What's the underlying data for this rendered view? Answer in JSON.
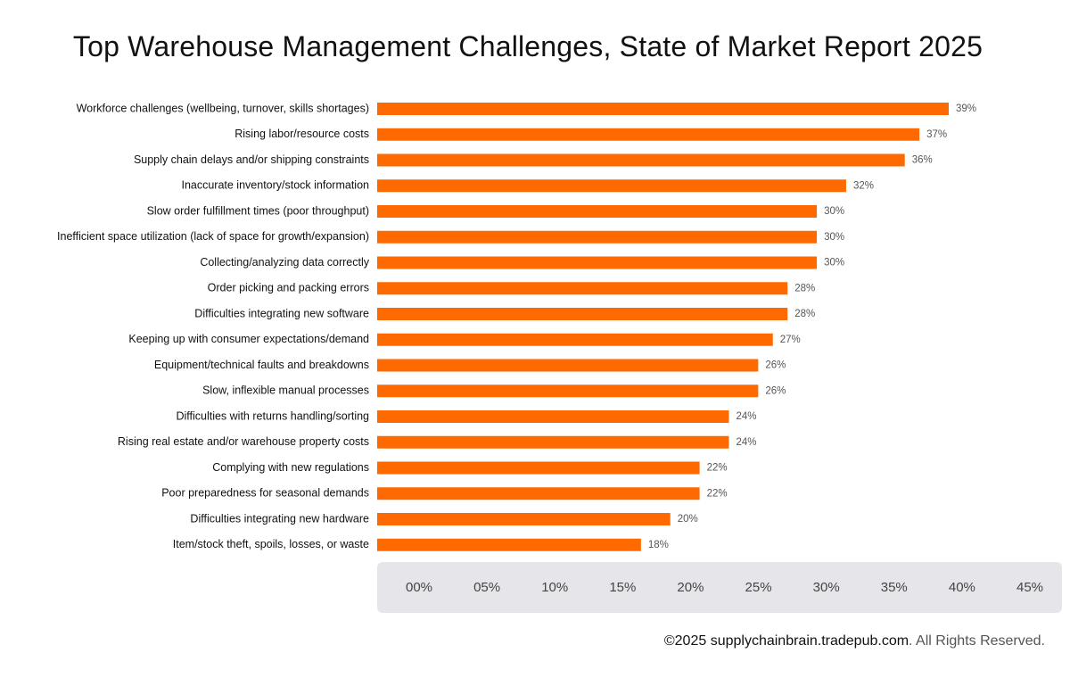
{
  "colors": {
    "bar": "#ff6a00",
    "axis_panel": "#e6e6ea",
    "label_text": "#111111",
    "value_text": "#555555",
    "tick_text": "#444444"
  },
  "footer": {
    "domain": "©2025 supplychainbrain.tradepub.com",
    "rights": ". All Rights Reserved."
  },
  "chart_data": {
    "type": "bar",
    "orientation": "horizontal",
    "title": "Top Warehouse Management Challenges, State of Market Report 2025",
    "xlabel": "",
    "ylabel": "",
    "xlim": [
      0,
      45
    ],
    "grid": false,
    "legend": "none",
    "ticks": [
      "00%",
      "05%",
      "10%",
      "15%",
      "20%",
      "25%",
      "30%",
      "35%",
      "40%",
      "45%"
    ],
    "categories": [
      "Workforce challenges (wellbeing, turnover, skills shortages)",
      "Rising labor/resource costs",
      "Supply chain delays and/or shipping constraints",
      "Inaccurate inventory/stock information",
      "Slow order fulfillment times (poor throughput)",
      "Inefficient space utilization (lack of space for growth/expansion)",
      "Collecting/analyzing data correctly",
      "Order picking and packing errors",
      "Difficulties integrating new software",
      "Keeping up with consumer expectations/demand",
      "Equipment/technical faults and breakdowns",
      "Slow, inflexible manual processes",
      "Difficulties with returns handling/sorting",
      "Rising real estate and/or warehouse property costs",
      "Complying with new regulations",
      "Poor preparedness for seasonal demands",
      "Difficulties integrating new hardware",
      "Item/stock theft, spoils, losses, or waste"
    ],
    "values": [
      39,
      37,
      36,
      32,
      30,
      30,
      30,
      28,
      28,
      27,
      26,
      26,
      24,
      24,
      22,
      22,
      20,
      18
    ],
    "value_labels": [
      "39%",
      "37%",
      "36%",
      "32%",
      "30%",
      "30%",
      "30%",
      "28%",
      "28%",
      "27%",
      "26%",
      "26%",
      "24%",
      "24%",
      "22%",
      "22%",
      "20%",
      "18%"
    ]
  }
}
